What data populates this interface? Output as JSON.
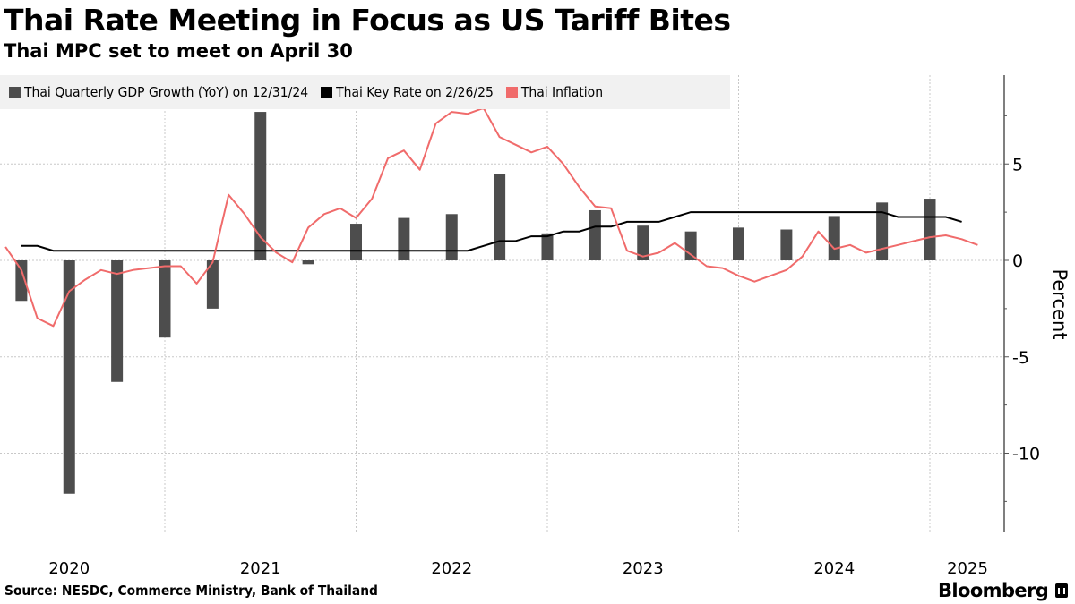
{
  "header": {
    "title": "Thai Rate Meeting in Focus as US Tariff Bites",
    "subtitle": "Thai MPC set to meet on April 30"
  },
  "footer": {
    "source": "Source: NESDC, Commerce Ministry, Bank of Thailand",
    "brand": "Bloomberg"
  },
  "colors": {
    "gdp": "#4d4d4d",
    "rate": "#000000",
    "inflation": "#f06b6b",
    "legend_bg": "#f1f1f1",
    "grid": "#c8c8c8"
  },
  "chart_data": {
    "type": "bar",
    "title": "Thai Rate Meeting in Focus as US Tariff Bites",
    "subtitle": "Thai MPC set to meet on April 30",
    "xlabel": "",
    "ylabel": "Percent",
    "ylim": [
      -14.0,
      9.5
    ],
    "yticks": [
      5,
      0,
      -5,
      -10
    ],
    "ytick_labels": [
      "5",
      "0",
      "-5",
      "-10"
    ],
    "xtick_labels": [
      "2020",
      "2021",
      "2022",
      "2023",
      "2024",
      "2025"
    ],
    "x_range_years": [
      2019.86,
      2025.26
    ],
    "grid": true,
    "y_axis_side": "right",
    "legend_placement": "top-left",
    "series": [
      {
        "name": "Thai Quarterly GDP Growth (YoY) on 12/31/24",
        "type": "bar",
        "x": [
          "2020Q1",
          "2020Q2",
          "2020Q3",
          "2020Q4",
          "2021Q1",
          "2021Q2",
          "2021Q3",
          "2021Q4",
          "2022Q1",
          "2022Q2",
          "2022Q3",
          "2022Q4",
          "2023Q1",
          "2023Q2",
          "2023Q3",
          "2023Q4",
          "2024Q1",
          "2024Q2",
          "2024Q3",
          "2024Q4"
        ],
        "values": [
          -2.1,
          -12.1,
          -6.3,
          -4.0,
          -2.5,
          7.7,
          -0.2,
          1.9,
          2.2,
          2.4,
          4.5,
          1.4,
          2.6,
          1.8,
          1.5,
          1.7,
          1.6,
          2.3,
          3.0,
          3.2
        ]
      },
      {
        "name": "Thai Key Rate on 2/26/25",
        "type": "line",
        "x": [
          "2020-03",
          "2020-04",
          "2020-05",
          "2020-06",
          "2020-07",
          "2020-08",
          "2020-09",
          "2020-10",
          "2020-11",
          "2020-12",
          "2021-01",
          "2021-02",
          "2021-03",
          "2021-04",
          "2021-05",
          "2021-06",
          "2021-07",
          "2021-08",
          "2021-09",
          "2021-10",
          "2021-11",
          "2021-12",
          "2022-01",
          "2022-02",
          "2022-03",
          "2022-04",
          "2022-05",
          "2022-06",
          "2022-07",
          "2022-08",
          "2022-09",
          "2022-10",
          "2022-11",
          "2022-12",
          "2023-01",
          "2023-02",
          "2023-03",
          "2023-04",
          "2023-05",
          "2023-06",
          "2023-07",
          "2023-08",
          "2023-09",
          "2023-10",
          "2023-11",
          "2023-12",
          "2024-01",
          "2024-02",
          "2024-03",
          "2024-04",
          "2024-05",
          "2024-06",
          "2024-07",
          "2024-08",
          "2024-09",
          "2024-10",
          "2024-11",
          "2024-12",
          "2025-01",
          "2025-02"
        ],
        "values": [
          0.75,
          0.75,
          0.5,
          0.5,
          0.5,
          0.5,
          0.5,
          0.5,
          0.5,
          0.5,
          0.5,
          0.5,
          0.5,
          0.5,
          0.5,
          0.5,
          0.5,
          0.5,
          0.5,
          0.5,
          0.5,
          0.5,
          0.5,
          0.5,
          0.5,
          0.5,
          0.5,
          0.5,
          0.5,
          0.75,
          1.0,
          1.0,
          1.25,
          1.25,
          1.5,
          1.5,
          1.75,
          1.75,
          2.0,
          2.0,
          2.0,
          2.25,
          2.5,
          2.5,
          2.5,
          2.5,
          2.5,
          2.5,
          2.5,
          2.5,
          2.5,
          2.5,
          2.5,
          2.5,
          2.5,
          2.25,
          2.25,
          2.25,
          2.25,
          2.0
        ]
      },
      {
        "name": "Thai Inflation",
        "type": "line",
        "x": [
          "2020-02",
          "2020-03",
          "2020-04",
          "2020-05",
          "2020-06",
          "2020-07",
          "2020-08",
          "2020-09",
          "2020-10",
          "2020-11",
          "2020-12",
          "2021-01",
          "2021-02",
          "2021-03",
          "2021-04",
          "2021-05",
          "2021-06",
          "2021-07",
          "2021-08",
          "2021-09",
          "2021-10",
          "2021-11",
          "2021-12",
          "2022-01",
          "2022-02",
          "2022-03",
          "2022-04",
          "2022-05",
          "2022-06",
          "2022-07",
          "2022-08",
          "2022-09",
          "2022-10",
          "2022-11",
          "2022-12",
          "2023-01",
          "2023-02",
          "2023-03",
          "2023-04",
          "2023-05",
          "2023-06",
          "2023-07",
          "2023-08",
          "2023-09",
          "2023-10",
          "2023-11",
          "2023-12",
          "2024-01",
          "2024-02",
          "2024-03",
          "2024-04",
          "2024-05",
          "2024-06",
          "2024-07",
          "2024-08",
          "2024-09",
          "2024-10",
          "2024-11",
          "2024-12",
          "2025-01",
          "2025-02",
          "2025-03"
        ],
        "values": [
          0.7,
          -0.5,
          -3.0,
          -3.4,
          -1.6,
          -1.0,
          -0.5,
          -0.7,
          -0.5,
          -0.4,
          -0.3,
          -0.3,
          -1.2,
          -0.1,
          3.4,
          2.4,
          1.2,
          0.4,
          -0.1,
          1.7,
          2.4,
          2.7,
          2.2,
          3.2,
          5.3,
          5.7,
          4.7,
          7.1,
          7.7,
          7.6,
          7.9,
          6.4,
          6.0,
          5.6,
          5.9,
          5.0,
          3.8,
          2.8,
          2.7,
          0.5,
          0.2,
          0.4,
          0.9,
          0.3,
          -0.3,
          -0.4,
          -0.8,
          -1.1,
          -0.8,
          -0.5,
          0.2,
          1.5,
          0.6,
          0.8,
          0.4,
          0.6,
          0.8,
          1.0,
          1.2,
          1.3,
          1.1,
          0.8
        ]
      }
    ]
  }
}
